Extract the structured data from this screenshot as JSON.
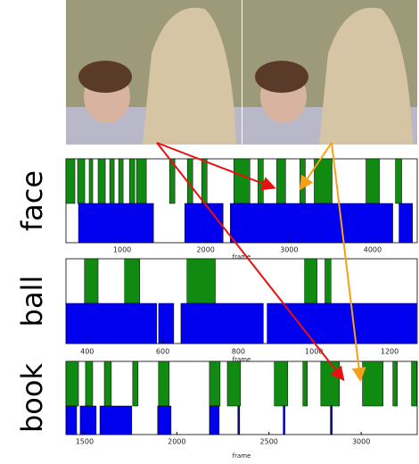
{
  "panels": [
    {
      "label": "face",
      "xlabel": "frame",
      "xlim": [
        326,
        4535
      ],
      "xticks": [
        1000,
        2000,
        3000,
        4000
      ],
      "green": [
        [
          326,
          433
        ],
        [
          465,
          551
        ],
        [
          604,
          647
        ],
        [
          711,
          797
        ],
        [
          850,
          904
        ],
        [
          957,
          1011
        ],
        [
          1086,
          1150
        ],
        [
          1171,
          1289
        ],
        [
          1567,
          1631
        ],
        [
          1781,
          1845
        ],
        [
          1952,
          2017
        ],
        [
          2338,
          2530
        ],
        [
          2627,
          2691
        ],
        [
          2851,
          2958
        ],
        [
          3129,
          3194
        ],
        [
          3301,
          3515
        ],
        [
          3921,
          4082
        ],
        [
          4274,
          4349
        ]
      ],
      "blue": [
        [
          476,
          1375
        ],
        [
          1749,
          2209
        ],
        [
          2295,
          4242
        ],
        [
          4317,
          4478
        ]
      ]
    },
    {
      "label": "ball",
      "xlabel": "frame",
      "xlim": [
        344,
        1273
      ],
      "xticks": [
        400,
        600,
        800,
        1000,
        1200
      ],
      "green": [
        [
          393,
          429
        ],
        [
          499,
          539
        ],
        [
          664,
          739
        ],
        [
          975,
          1008
        ],
        [
          1029,
          1045
        ]
      ],
      "blue": [
        [
          344,
          584
        ],
        [
          589,
          629
        ],
        [
          648,
          866
        ],
        [
          876,
          1271
        ]
      ]
    },
    {
      "label": "book",
      "xlabel": "frame",
      "xlim": [
        1399,
        3304
      ],
      "xticks": [
        1500,
        2000,
        2500,
        3000
      ],
      "green": [
        [
          1399,
          1467
        ],
        [
          1505,
          1544
        ],
        [
          1607,
          1645
        ],
        [
          1761,
          1790
        ],
        [
          1901,
          1959
        ],
        [
          2177,
          2235
        ],
        [
          2274,
          2346
        ],
        [
          2529,
          2602
        ],
        [
          2684,
          2708
        ],
        [
          2781,
          2882
        ],
        [
          3007,
          3119
        ],
        [
          3172,
          3196
        ],
        [
          3273,
          3302
        ]
      ],
      "blue": [
        [
          1399,
          1457
        ],
        [
          1476,
          1563
        ],
        [
          1583,
          1756
        ],
        [
          1896,
          1969
        ],
        [
          2177,
          2230
        ],
        [
          2331,
          2341
        ],
        [
          2577,
          2587
        ],
        [
          2833,
          2843
        ]
      ]
    }
  ],
  "colors": {
    "green": "#118a11",
    "blue": "#0000ee"
  }
}
